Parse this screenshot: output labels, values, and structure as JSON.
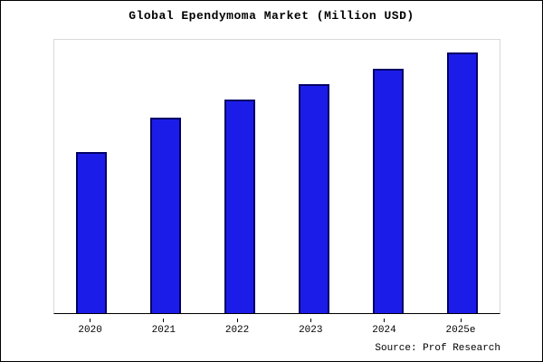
{
  "title": "Global Ependymoma Market (Million USD)",
  "source": "Source: Prof Research",
  "chart_data": {
    "type": "bar",
    "title": "Global Ependymoma Market (Million USD)",
    "categories": [
      "2020",
      "2021",
      "2022",
      "2023",
      "2024",
      "2025e"
    ],
    "values": [
      62,
      75,
      82,
      88,
      94,
      100
    ],
    "ylim": [
      0,
      105
    ],
    "xlabel": "",
    "ylabel": "",
    "y_axis_tick_labels": "none shown",
    "grid": false,
    "legend": "none",
    "bar_fill_color": "#1c1ce8",
    "bar_border_color": "#000066"
  }
}
